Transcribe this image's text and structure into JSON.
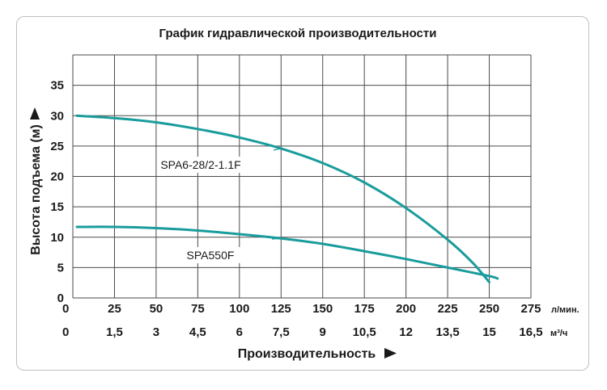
{
  "chart_data": {
    "type": "line",
    "title": "График гидравлической производительности",
    "ylabel": "Высота подъема (м)",
    "xlabel": "Производительность",
    "ylim": [
      0,
      40
    ],
    "y_ticks": [
      "0",
      "5",
      "10",
      "15",
      "20",
      "25",
      "30",
      "35"
    ],
    "xlim": [
      0,
      275
    ],
    "x_ticks": [
      "0",
      "25",
      "50",
      "75",
      "100",
      "125",
      "150",
      "175",
      "200",
      "225",
      "250",
      "275"
    ],
    "x_unit": "л/мин.",
    "x2_ticks": [
      "0",
      "1,5",
      "3",
      "4,5",
      "6",
      "7,5",
      "9",
      "10,5",
      "12",
      "13,5",
      "15",
      "16,5"
    ],
    "x2_unit": "м³/ч",
    "grid": true,
    "line_color": "#1a9c9c",
    "series": [
      {
        "name": "SPA6-28/2-1.1F",
        "x": [
          0,
          25,
          50,
          75,
          100,
          125,
          150,
          175,
          200,
          225,
          240,
          250
        ],
        "y": [
          30,
          29.6,
          28.9,
          27.8,
          26.4,
          24.6,
          22.2,
          19.0,
          14.8,
          9.6,
          5.8,
          2.6
        ]
      },
      {
        "name": "SPA550F",
        "x": [
          0,
          25,
          50,
          75,
          100,
          125,
          150,
          175,
          200,
          225,
          250,
          255
        ],
        "y": [
          11.7,
          11.7,
          11.5,
          11.1,
          10.5,
          9.8,
          8.9,
          7.7,
          6.4,
          5.0,
          3.6,
          3.2
        ]
      }
    ]
  }
}
